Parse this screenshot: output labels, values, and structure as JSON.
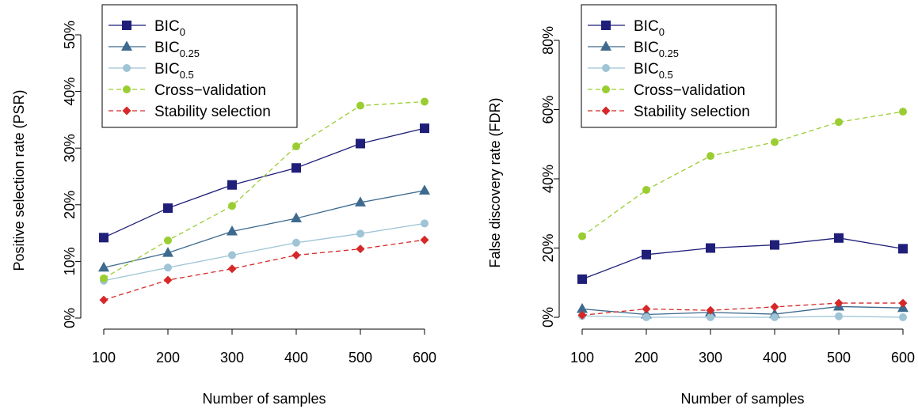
{
  "chart_data": [
    {
      "type": "line",
      "xlabel": "Number of samples",
      "ylabel": "Positive selection rate (PSR)",
      "x": [
        100,
        200,
        300,
        400,
        500,
        600
      ],
      "xlim": [
        100,
        600
      ],
      "ylim": [
        0,
        50
      ],
      "yticks": [
        "0%",
        "10%",
        "20%",
        "30%",
        "40%",
        "50%"
      ],
      "ytick_values": [
        0,
        10,
        20,
        30,
        40,
        50
      ],
      "grid": false,
      "legend_position": "top-left",
      "series": [
        {
          "name": "BIC",
          "sub": "0",
          "color": "#1f1f7a",
          "marker": "square",
          "dash": "solid",
          "values": [
            14.2,
            19.4,
            23.5,
            26.5,
            30.8,
            33.5
          ]
        },
        {
          "name": "BIC",
          "sub": "0.25",
          "color": "#3d6a8e",
          "marker": "triangle",
          "dash": "solid",
          "values": [
            8.9,
            11.5,
            15.3,
            17.6,
            20.4,
            22.5
          ]
        },
        {
          "name": "BIC",
          "sub": "0.5",
          "color": "#9ec4d6",
          "marker": "circle",
          "dash": "solid",
          "values": [
            6.6,
            8.9,
            11.1,
            13.3,
            14.9,
            16.7
          ]
        },
        {
          "name": "Cross−validation",
          "sub": "",
          "color": "#9acd32",
          "marker": "circle",
          "dash": "dashed",
          "values": [
            7.0,
            13.7,
            19.8,
            30.3,
            37.5,
            38.2
          ]
        },
        {
          "name": "Stability selection",
          "sub": "",
          "color": "#d62828",
          "marker": "diamond",
          "dash": "dashed",
          "values": [
            3.2,
            6.7,
            8.7,
            11.1,
            12.2,
            13.8
          ]
        }
      ]
    },
    {
      "type": "line",
      "xlabel": "Number of samples",
      "ylabel": "False discovery rate (FDR)",
      "x": [
        100,
        200,
        300,
        400,
        500,
        600
      ],
      "xlim": [
        100,
        600
      ],
      "ylim": [
        0,
        80
      ],
      "yticks": [
        "0%",
        "20%",
        "40%",
        "60%",
        "80%"
      ],
      "ytick_values": [
        0,
        20,
        40,
        60,
        80
      ],
      "grid": false,
      "legend_position": "top-left",
      "series": [
        {
          "name": "BIC",
          "sub": "0",
          "color": "#1f1f7a",
          "marker": "square",
          "dash": "solid",
          "values": [
            11.0,
            18.1,
            20.0,
            20.9,
            22.9,
            19.8
          ]
        },
        {
          "name": "BIC",
          "sub": "0.25",
          "color": "#3d6a8e",
          "marker": "triangle",
          "dash": "solid",
          "values": [
            2.4,
            0.8,
            1.4,
            0.9,
            3.1,
            2.7
          ]
        },
        {
          "name": "BIC",
          "sub": "0.5",
          "color": "#9ec4d6",
          "marker": "circle",
          "dash": "solid",
          "values": [
            0.4,
            0.0,
            0.0,
            0.0,
            0.3,
            0.0
          ]
        },
        {
          "name": "Cross−validation",
          "sub": "",
          "color": "#9acd32",
          "marker": "circle",
          "dash": "dashed",
          "values": [
            23.4,
            36.8,
            46.6,
            50.6,
            56.4,
            59.4
          ]
        },
        {
          "name": "Stability selection",
          "sub": "",
          "color": "#d62828",
          "marker": "diamond",
          "dash": "dashed",
          "values": [
            0.6,
            2.4,
            2.0,
            3.0,
            4.1,
            4.1
          ]
        }
      ]
    }
  ]
}
